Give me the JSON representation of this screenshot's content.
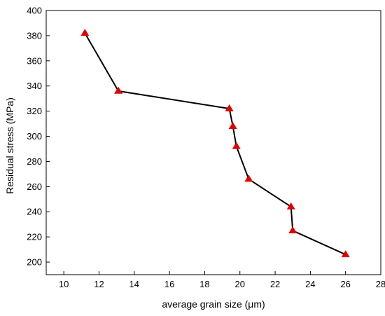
{
  "chart_data": {
    "type": "line",
    "xlabel": "average grain size  (μm)",
    "ylabel": "Residual stress (MPa)",
    "xlim": [
      9,
      28
    ],
    "ylim": [
      190,
      400
    ],
    "xticks": [
      10,
      12,
      14,
      16,
      18,
      20,
      22,
      24,
      26,
      28
    ],
    "yticks": [
      200,
      220,
      240,
      260,
      280,
      300,
      320,
      340,
      360,
      380,
      400
    ],
    "grid": false,
    "marker": "triangle",
    "line_color": "#000000",
    "marker_color": "#e00000",
    "series": [
      {
        "x": [
          11.2,
          13.1,
          19.4,
          19.6,
          19.8,
          20.5,
          22.9,
          23.0,
          26.0
        ],
        "y": [
          382,
          336,
          322,
          308,
          292,
          266,
          244,
          225,
          206
        ]
      }
    ]
  }
}
